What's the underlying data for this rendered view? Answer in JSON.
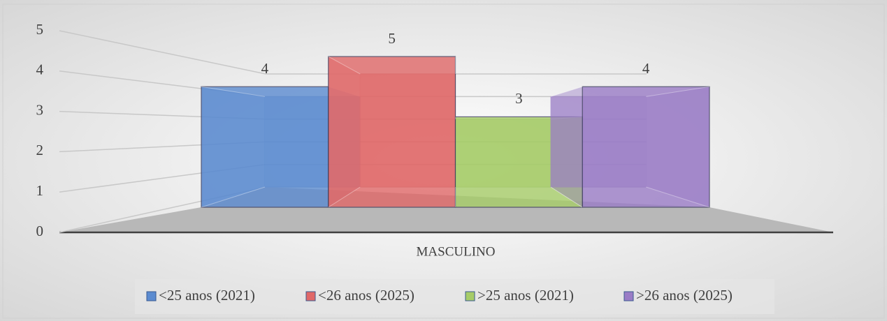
{
  "chart_data": {
    "type": "bar3d",
    "categories": [
      "MASCULINO"
    ],
    "series": [
      {
        "name": "<25 anos (2021)",
        "color": "#5b8bd0",
        "values": [
          4
        ]
      },
      {
        "name": "<26 anos (2025)",
        "color": "#e06868",
        "values": [
          5
        ]
      },
      {
        "name": ">25 anos (2021)",
        "color": "#a6cc68",
        "values": [
          3
        ]
      },
      {
        "name": ">26 anos (2025)",
        "color": "#9a7cc6",
        "values": [
          4
        ]
      }
    ],
    "ylim": [
      0,
      5
    ],
    "yticks": [
      0,
      1,
      2,
      3,
      4,
      5
    ],
    "grid": true,
    "legend": "bottom"
  }
}
